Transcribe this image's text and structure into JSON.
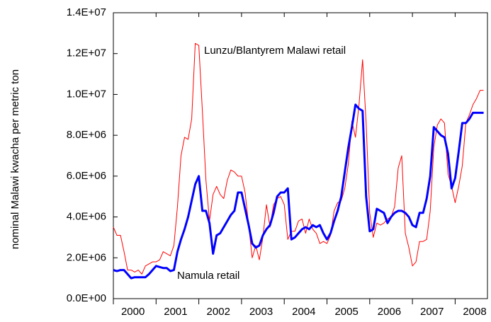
{
  "chart_data": {
    "type": "line",
    "y_label": "nominal Malawi kwacha per metric ton",
    "categories": [
      null,
      null,
      null,
      null,
      null,
      null,
      "2000",
      null,
      null,
      null,
      null,
      null,
      null,
      null,
      null,
      null,
      null,
      null,
      "2001",
      null,
      null,
      null,
      null,
      null,
      null,
      null,
      null,
      null,
      null,
      null,
      "2002",
      null,
      null,
      null,
      null,
      null,
      null,
      null,
      null,
      null,
      null,
      null,
      "2003",
      null,
      null,
      null,
      null,
      null,
      null,
      null,
      null,
      null,
      null,
      null,
      "2004",
      null,
      null,
      null,
      null,
      null,
      null,
      null,
      null,
      null,
      null,
      null,
      "2005",
      null,
      null,
      null,
      null,
      null,
      null,
      null,
      null,
      null,
      null,
      null,
      "2006",
      null,
      null,
      null,
      null,
      null,
      null,
      null,
      null,
      null,
      null,
      null,
      "2007",
      null,
      null,
      null,
      null,
      null,
      null,
      null,
      null,
      null,
      null,
      null,
      "2008",
      null,
      null
    ],
    "series": [
      {
        "name": "Lunzu/Blantyrem Malawi retail",
        "color": "#ff0000",
        "width": 1,
        "values": [
          3500000,
          3100000,
          3100000,
          2300000,
          1400000,
          1400000,
          1300000,
          1400000,
          1200000,
          1600000,
          1700000,
          1800000,
          1800000,
          1900000,
          2300000,
          2200000,
          2100000,
          2600000,
          4500000,
          7000000,
          7900000,
          7800000,
          8800000,
          12500000,
          12400000,
          9200000,
          5800000,
          3800000,
          5100000,
          5500000,
          5100000,
          4900000,
          5800000,
          6300000,
          6200000,
          6000000,
          6000000,
          5200000,
          3600000,
          2000000,
          2600000,
          1900000,
          3000000,
          4600000,
          3500000,
          4600000,
          4900000,
          5000000,
          4600000,
          2900000,
          3300000,
          3300000,
          3800000,
          3900000,
          3200000,
          3900000,
          3400000,
          3200000,
          2700000,
          2800000,
          2700000,
          3100000,
          4300000,
          4700000,
          4800000,
          5400000,
          6600000,
          8700000,
          7900000,
          9500000,
          11700000,
          8600000,
          4200000,
          3000000,
          3700000,
          3600000,
          3700000,
          3900000,
          4000000,
          4500000,
          6400000,
          7000000,
          3200000,
          2500000,
          1600000,
          1800000,
          2800000,
          2800000,
          2900000,
          4300000,
          7400000,
          8500000,
          8800000,
          8600000,
          6100000,
          5500000,
          4700000,
          5500000,
          6500000,
          8600000,
          9000000,
          9500000,
          9800000,
          10200000,
          10200000
        ]
      },
      {
        "name": "Namula retail",
        "color": "#0000ff",
        "width": 3,
        "values": [
          1400000,
          1350000,
          1400000,
          1400000,
          1200000,
          1000000,
          1050000,
          1050000,
          1050000,
          1050000,
          1200000,
          1400000,
          1600000,
          1550000,
          1500000,
          1500000,
          1350000,
          1400000,
          2300000,
          2900000,
          3400000,
          4000000,
          4800000,
          5600000,
          6000000,
          4300000,
          4300000,
          3700000,
          2200000,
          3100000,
          3200000,
          3500000,
          3800000,
          4100000,
          4300000,
          5200000,
          5200000,
          4400000,
          3600000,
          2700000,
          2500000,
          2600000,
          3100000,
          3400000,
          3600000,
          4200000,
          5000000,
          5200000,
          5200000,
          5400000,
          2900000,
          3000000,
          3200000,
          3400000,
          3500000,
          3400000,
          3600000,
          3500000,
          3600000,
          3200000,
          2900000,
          3200000,
          3800000,
          4300000,
          5000000,
          6200000,
          7400000,
          8400000,
          9500000,
          9300000,
          9200000,
          5000000,
          3300000,
          3400000,
          4400000,
          4300000,
          4200000,
          3700000,
          4000000,
          4200000,
          4300000,
          4300000,
          4200000,
          4000000,
          3600000,
          3500000,
          4200000,
          4200000,
          4900000,
          6000000,
          8400000,
          8200000,
          8000000,
          7900000,
          7100000,
          5400000,
          5900000,
          7200000,
          8600000,
          8600000,
          8800000,
          9100000,
          9100000,
          9100000,
          9100000
        ]
      }
    ],
    "ylim": [
      0,
      14000000
    ],
    "yticks": [
      {
        "value": 0,
        "label": "0.0E+00"
      },
      {
        "value": 2000000,
        "label": "2.0E+06"
      },
      {
        "value": 4000000,
        "label": "4.0E+06"
      },
      {
        "value": 6000000,
        "label": "6.0E+06"
      },
      {
        "value": 8000000,
        "label": "8.0E+06"
      },
      {
        "value": 10000000,
        "label": "1.0E+07"
      },
      {
        "value": 12000000,
        "label": "1.2E+07"
      },
      {
        "value": 14000000,
        "label": "1.4E+07"
      }
    ],
    "grid": false
  }
}
